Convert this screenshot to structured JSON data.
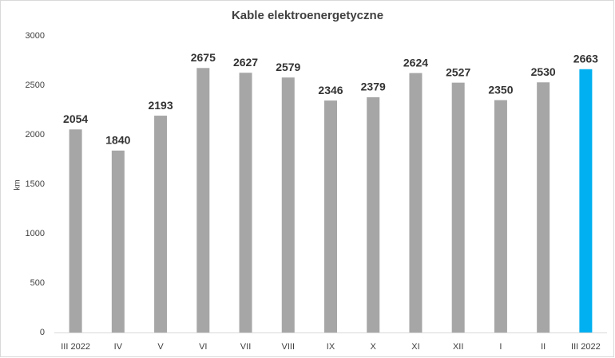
{
  "chart_data": {
    "type": "bar",
    "title": "Kable elektroenergetyczne",
    "y_label": "km",
    "categories": [
      "III 2022",
      "IV",
      "V",
      "VI",
      "VII",
      "VIII",
      "IX",
      "X",
      "XI",
      "XII",
      "I",
      "II",
      "III 2022"
    ],
    "values": [
      2054,
      1840,
      2193,
      2675,
      2627,
      2579,
      2346,
      2379,
      2624,
      2527,
      2350,
      2530,
      2663
    ],
    "colors": [
      "#a6a6a6",
      "#a6a6a6",
      "#a6a6a6",
      "#a6a6a6",
      "#a6a6a6",
      "#a6a6a6",
      "#a6a6a6",
      "#a6a6a6",
      "#a6a6a6",
      "#a6a6a6",
      "#a6a6a6",
      "#a6a6a6",
      "#00b0f0"
    ],
    "ylim": [
      0,
      3000
    ],
    "yticks": [
      0,
      500,
      1000,
      1500,
      2000,
      2500,
      3000
    ],
    "grid": false
  }
}
